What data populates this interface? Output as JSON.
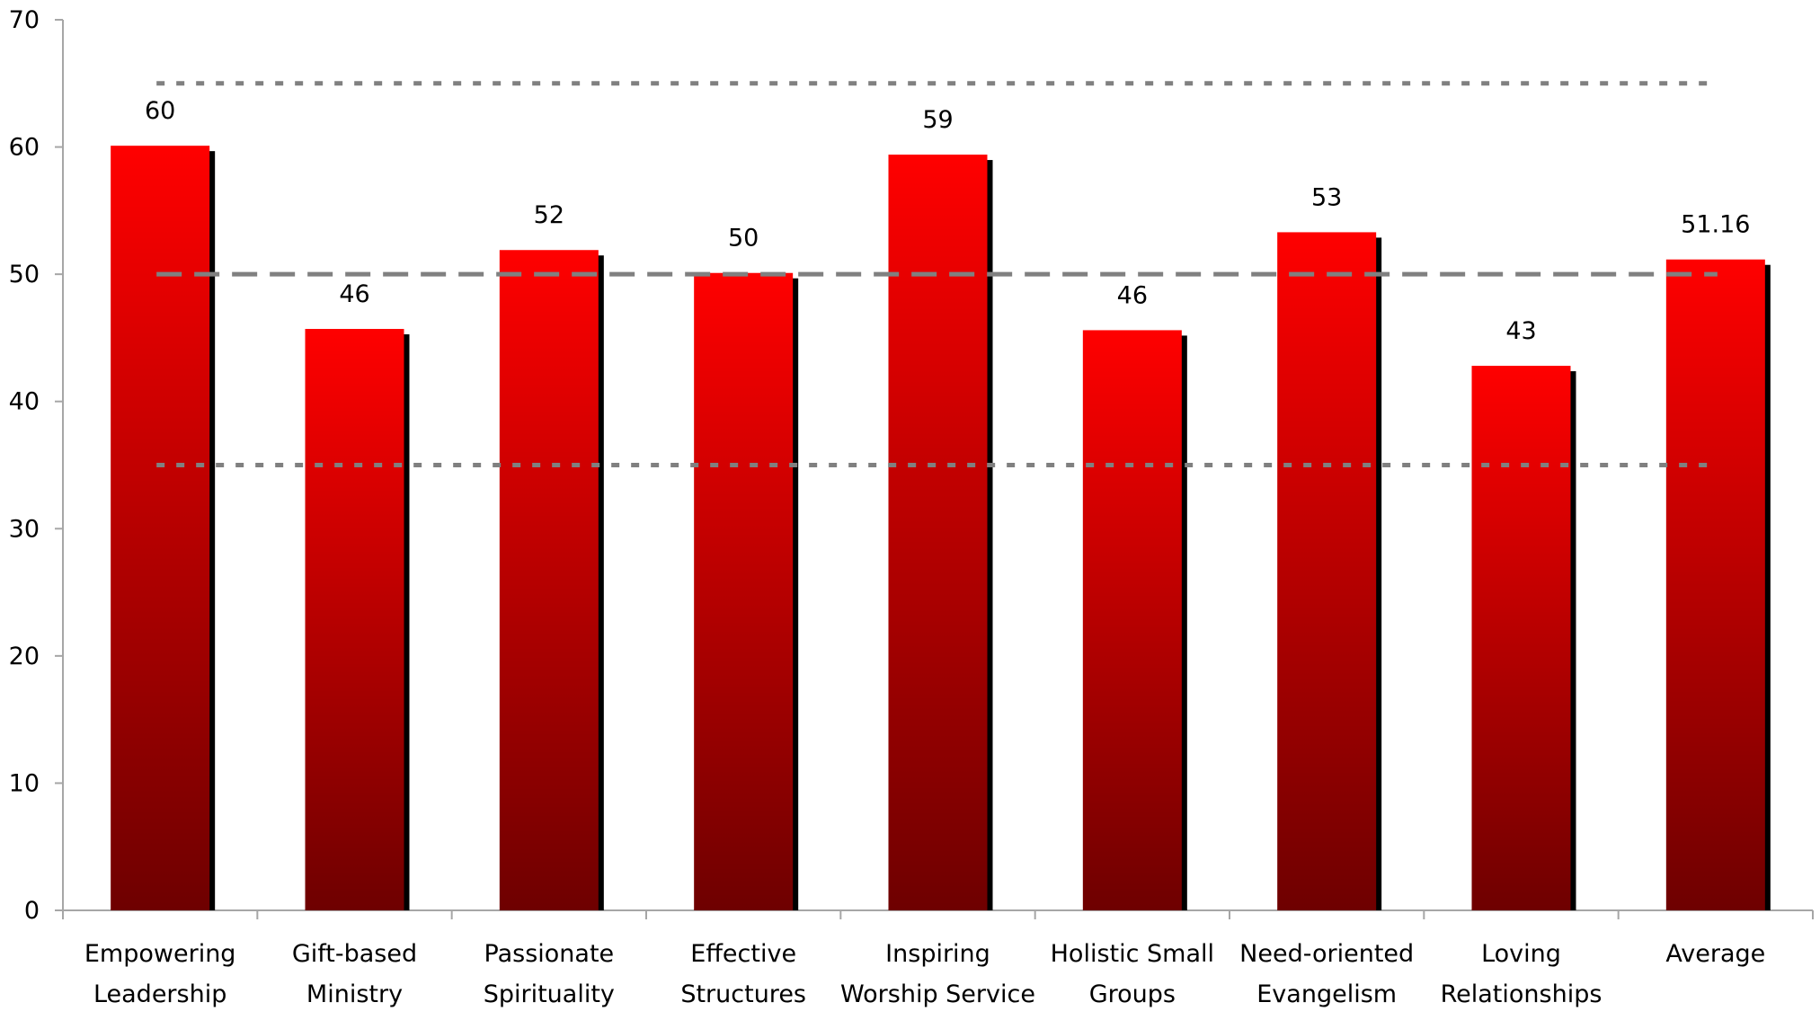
{
  "chart_data": {
    "type": "bar",
    "title": "",
    "xlabel": "",
    "ylabel": "",
    "ylim": [
      0,
      70
    ],
    "yticks": [
      0,
      10,
      20,
      30,
      40,
      50,
      60,
      70
    ],
    "grid": false,
    "legend": "none",
    "categories": [
      [
        "Empowering",
        "Leadership"
      ],
      [
        "Gift-based",
        "Ministry"
      ],
      [
        "Passionate",
        "Spirituality"
      ],
      [
        "Effective",
        "Structures"
      ],
      [
        "Inspiring",
        "Worship Service"
      ],
      [
        "Holistic Small",
        "Groups"
      ],
      [
        "Need-oriented",
        "Evangelism"
      ],
      [
        "Loving",
        "Relationships"
      ],
      [
        "Average"
      ]
    ],
    "values": [
      60.1,
      45.7,
      51.9,
      50.1,
      59.4,
      45.6,
      53.3,
      42.8,
      51.16
    ],
    "data_labels": [
      "60",
      "46",
      "52",
      "50",
      "59",
      "46",
      "53",
      "43",
      "51.16"
    ],
    "reference_lines": [
      {
        "value": 65,
        "style": "dotted"
      },
      {
        "value": 50,
        "style": "dashed"
      },
      {
        "value": 35,
        "style": "dotted"
      }
    ],
    "colors": {
      "bar_top": "#ff0000",
      "bar_bottom": "#6e0000",
      "bar_shadow": "#000000",
      "reference_line": "#808080",
      "axis": "#a6a6a6"
    }
  }
}
